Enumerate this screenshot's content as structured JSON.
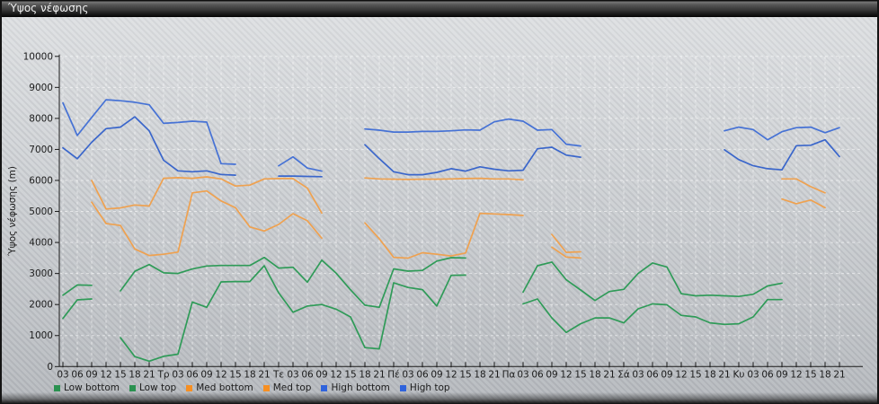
{
  "window": {
    "title": "Ύψος νέφωσης"
  },
  "chart_data": {
    "type": "line",
    "title": "Ύψος νέφωσης",
    "ylabel": "Ύψος νέφωσης (m)",
    "xlabel": "",
    "ylim": [
      0,
      10000
    ],
    "grid": "white-dashed",
    "legend_position": "bottom-left",
    "y_tick_labels": [
      "0",
      "1000",
      "2000",
      "3000",
      "4000",
      "5000",
      "6000",
      "7000",
      "8000",
      "9000",
      "10000"
    ],
    "x_tick_labels": [
      "03",
      "06",
      "09",
      "12",
      "15",
      "18",
      "21",
      "Τρ",
      "03",
      "06",
      "09",
      "12",
      "15",
      "18",
      "21",
      "Τε",
      "03",
      "06",
      "09",
      "12",
      "15",
      "18",
      "21",
      "Πέ",
      "03",
      "06",
      "09",
      "12",
      "15",
      "18",
      "21",
      "Πα",
      "03",
      "06",
      "09",
      "12",
      "15",
      "18",
      "21",
      "Σά",
      "03",
      "06",
      "09",
      "12",
      "15",
      "18",
      "21",
      "Κυ",
      "03",
      "06",
      "09",
      "12",
      "15",
      "18",
      "21"
    ],
    "series": [
      {
        "name": "Low bottom",
        "color": "#2f9b58",
        "values": [
          1550,
          2150,
          2180,
          null,
          930,
          320,
          175,
          330,
          400,
          2080,
          1910,
          2730,
          2740,
          2740,
          3250,
          2380,
          1750,
          1950,
          2000,
          1850,
          1600,
          610,
          570,
          2700,
          2550,
          2480,
          1950,
          2940,
          2950,
          null,
          null,
          null,
          2020,
          2180,
          1570,
          1100,
          1380,
          1570,
          1570,
          1410,
          1860,
          2020,
          1990,
          1650,
          1600,
          1410,
          1360,
          1380,
          1600,
          2160,
          2160,
          null,
          null,
          null,
          null
        ]
      },
      {
        "name": "Low top",
        "color": "#2f9b58",
        "values": [
          2300,
          2630,
          2620,
          null,
          2440,
          3070,
          3290,
          3020,
          3000,
          3145,
          3240,
          3260,
          3260,
          3260,
          3520,
          3175,
          3200,
          2720,
          3430,
          3010,
          2475,
          1980,
          1910,
          3150,
          3075,
          3100,
          3400,
          3510,
          3500,
          null,
          null,
          null,
          2400,
          3250,
          3370,
          2800,
          2470,
          2130,
          2420,
          2490,
          3000,
          3340,
          3210,
          2350,
          2280,
          2300,
          2280,
          2260,
          2330,
          2600,
          2690,
          null,
          null,
          null,
          null
        ]
      },
      {
        "name": "Med bottom",
        "color": "#efa14f",
        "values": [
          null,
          null,
          5300,
          4610,
          4550,
          3790,
          3580,
          3620,
          3690,
          5600,
          5660,
          5340,
          5120,
          4500,
          4370,
          4580,
          4930,
          4700,
          4140,
          null,
          null,
          4630,
          4120,
          3520,
          3495,
          3670,
          3620,
          3565,
          3660,
          4940,
          4920,
          4900,
          4870,
          null,
          3850,
          3530,
          3500,
          null,
          null,
          null,
          null,
          null,
          null,
          null,
          null,
          null,
          null,
          null,
          null,
          null,
          5400,
          5250,
          5370,
          5120,
          null,
          null
        ]
      },
      {
        "name": "Med top",
        "color": "#efa14f",
        "values": [
          null,
          null,
          6000,
          5080,
          5115,
          5210,
          5175,
          6070,
          6090,
          6070,
          6115,
          6050,
          5820,
          5850,
          6050,
          6060,
          6060,
          5750,
          4950,
          null,
          null,
          6080,
          6050,
          6040,
          6030,
          6040,
          6040,
          6050,
          6060,
          6070,
          6050,
          6050,
          6020,
          null,
          4260,
          3680,
          3700,
          null,
          null,
          null,
          null,
          null,
          null,
          null,
          null,
          null,
          null,
          null,
          null,
          null,
          6050,
          6050,
          5800,
          5600,
          null,
          null
        ]
      },
      {
        "name": "High bottom",
        "color": "#3a66cb",
        "values": [
          7050,
          6700,
          7230,
          7670,
          7720,
          8050,
          7600,
          6650,
          6310,
          6280,
          6310,
          6190,
          6170,
          null,
          null,
          6140,
          6140,
          6130,
          6120,
          null,
          null,
          7150,
          6700,
          6280,
          6185,
          6185,
          6260,
          6380,
          6300,
          6440,
          6360,
          6310,
          6330,
          7020,
          7070,
          6815,
          6750,
          null,
          null,
          null,
          null,
          null,
          null,
          null,
          null,
          null,
          6990,
          6670,
          6475,
          6380,
          6340,
          7120,
          7135,
          7310,
          6770
        ]
      },
      {
        "name": "High top",
        "color": "#4672d5",
        "values": [
          8500,
          7450,
          8030,
          8600,
          8570,
          8520,
          8440,
          7840,
          7870,
          7910,
          7880,
          6540,
          6520,
          null,
          null,
          6470,
          6760,
          6400,
          6300,
          null,
          null,
          7660,
          7620,
          7560,
          7560,
          7580,
          7580,
          7600,
          7630,
          7620,
          7890,
          7980,
          7910,
          7620,
          7640,
          7170,
          7110,
          null,
          null,
          null,
          null,
          null,
          null,
          null,
          null,
          null,
          7600,
          7720,
          7640,
          7310,
          7570,
          7700,
          7720,
          7540,
          7700
        ]
      }
    ],
    "legend_swatch_colors": [
      "#2a9150",
      "#2a9150",
      "#f68f22",
      "#f68f22",
      "#2f63dc",
      "#2f63dc"
    ]
  }
}
